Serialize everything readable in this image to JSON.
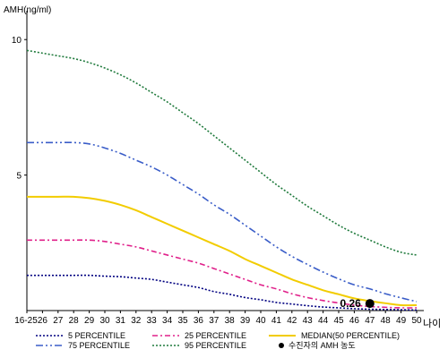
{
  "chart_data": {
    "type": "line",
    "ylabel": "AMH(ng/ml)",
    "xlabel": "나이",
    "ylim": [
      0,
      10.8
    ],
    "y_ticks": [
      5,
      10
    ],
    "categories": [
      "16-25",
      "26",
      "27",
      "28",
      "29",
      "30",
      "31",
      "32",
      "33",
      "34",
      "35",
      "36",
      "37",
      "38",
      "39",
      "40",
      "41",
      "42",
      "43",
      "44",
      "45",
      "46",
      "47",
      "48",
      "49",
      "50"
    ],
    "series": [
      {
        "name": "5 PERCENTILE",
        "color": "#000080",
        "dash": "2,2",
        "values": [
          1.3,
          1.3,
          1.3,
          1.3,
          1.3,
          1.27,
          1.25,
          1.2,
          1.15,
          1.05,
          0.95,
          0.85,
          0.7,
          0.6,
          0.48,
          0.4,
          0.3,
          0.24,
          0.18,
          0.13,
          0.1,
          0.07,
          0.05,
          0.04,
          0.03,
          0.02
        ]
      },
      {
        "name": "25 PERCENTILE",
        "color": "#e0208a",
        "dash": "6,3,2,3",
        "values": [
          2.6,
          2.6,
          2.6,
          2.6,
          2.6,
          2.55,
          2.45,
          2.35,
          2.2,
          2.05,
          1.9,
          1.75,
          1.55,
          1.35,
          1.15,
          0.95,
          0.8,
          0.62,
          0.48,
          0.37,
          0.28,
          0.2,
          0.15,
          0.12,
          0.1,
          0.1
        ]
      },
      {
        "name": "MEDIAN(50 PERCENTILE)",
        "color": "#f2cc00",
        "dash": "",
        "values": [
          4.2,
          4.2,
          4.2,
          4.2,
          4.15,
          4.05,
          3.9,
          3.7,
          3.45,
          3.2,
          2.95,
          2.7,
          2.45,
          2.2,
          1.9,
          1.65,
          1.4,
          1.15,
          0.95,
          0.75,
          0.6,
          0.45,
          0.35,
          0.27,
          0.2,
          0.2
        ]
      },
      {
        "name": "75 PERCENTILE",
        "color": "#3a5dc8",
        "dash": "8,3,2,3,2,3",
        "values": [
          6.2,
          6.2,
          6.2,
          6.2,
          6.15,
          6.0,
          5.8,
          5.55,
          5.3,
          5.0,
          4.65,
          4.3,
          3.9,
          3.55,
          3.15,
          2.75,
          2.35,
          2.0,
          1.7,
          1.42,
          1.17,
          0.95,
          0.8,
          0.62,
          0.47,
          0.33
        ]
      },
      {
        "name": "95 PERCENTILE",
        "color": "#1f7a3c",
        "dash": "2,2",
        "values": [
          9.6,
          9.5,
          9.4,
          9.3,
          9.15,
          8.95,
          8.7,
          8.4,
          8.05,
          7.7,
          7.3,
          6.9,
          6.45,
          6.0,
          5.55,
          5.1,
          4.65,
          4.25,
          3.85,
          3.5,
          3.15,
          2.85,
          2.6,
          2.35,
          2.15,
          2.05
        ]
      }
    ],
    "marker": {
      "name": "수진자의 AMH 농도",
      "x": "47",
      "y": 0.26,
      "label": "0.26",
      "color": "#000000"
    },
    "legend_position": "bottom",
    "legend": [
      {
        "name": "5 PERCENTILE",
        "color": "#000080",
        "dash": "2,2"
      },
      {
        "name": "25 PERCENTILE",
        "color": "#e0208a",
        "dash": "6,3,2,3"
      },
      {
        "name": "MEDIAN(50 PERCENTILE)",
        "color": "#f2cc00",
        "dash": ""
      },
      {
        "name": "75 PERCENTILE",
        "color": "#3a5dc8",
        "dash": "8,3,2,3,2,3"
      },
      {
        "name": "95 PERCENTILE",
        "color": "#1f7a3c",
        "dash": "2,2"
      },
      {
        "name": "수진자의 AMH 농도",
        "color": "#000000",
        "dash": "marker"
      }
    ],
    "grid": false
  }
}
